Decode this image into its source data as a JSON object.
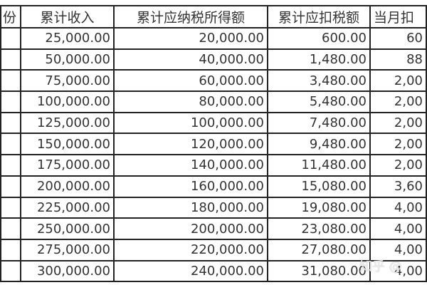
{
  "headers": [
    "份",
    "累计收入",
    "累计应纳税所得额",
    "累计应扣税额",
    "当月扣"
  ],
  "rows": [
    [
      "",
      "25,000.00",
      "20,000.00",
      "600.00",
      "60"
    ],
    [
      "",
      "50,000.00",
      "40,000.00",
      "1,480.00",
      "88"
    ],
    [
      "",
      "75,000.00",
      "60,000.00",
      "3,480.00",
      "2,00"
    ],
    [
      "",
      "100,000.00",
      "80,000.00",
      "5,480.00",
      "2,00"
    ],
    [
      "",
      "125,000.00",
      "100,000.00",
      "7,480.00",
      "2,00"
    ],
    [
      "",
      "150,000.00",
      "120,000.00",
      "9,480.00",
      "2,00"
    ],
    [
      "",
      "175,000.00",
      "140,000.00",
      "11,480.00",
      "2,00"
    ],
    [
      "",
      "200,000.00",
      "160,000.00",
      "15,080.00",
      "3,60"
    ],
    [
      "",
      "225,000.00",
      "180,000.00",
      "19,080.00",
      "4,00"
    ],
    [
      "",
      "250,000.00",
      "200,000.00",
      "23,080.00",
      "4,00"
    ],
    [
      "",
      "275,000.00",
      "220,000.00",
      "27,080.00",
      "4,00"
    ],
    [
      "",
      "300,000.00",
      "240,000.00",
      "31,080.00",
      "4,00"
    ]
  ],
  "watermark": "知乎 @"
}
